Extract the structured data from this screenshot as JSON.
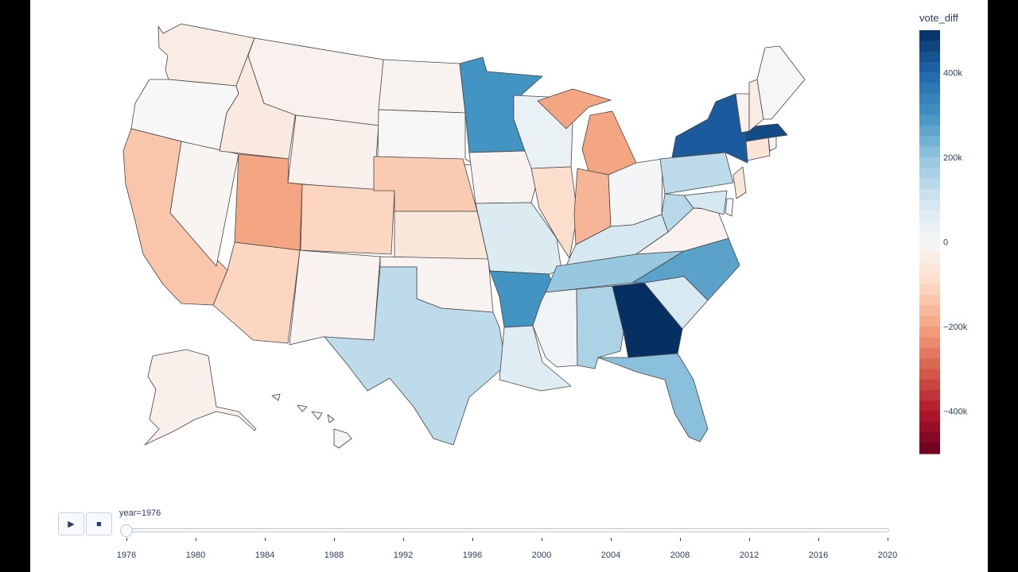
{
  "chart_data": {
    "type": "choropleth",
    "scope": "usa",
    "color_variable": "vote_diff",
    "colorscale": "RdBu",
    "color_range": [
      -500000,
      500000
    ],
    "colorbar": {
      "title": "vote_diff",
      "ticks": [
        {
          "value": 400000,
          "label": "400k"
        },
        {
          "value": 200000,
          "label": "200k"
        },
        {
          "value": 0,
          "label": "0"
        },
        {
          "value": -200000,
          "label": "−200k"
        },
        {
          "value": -400000,
          "label": "−400k"
        }
      ]
    },
    "animation_frame": "year",
    "current_frame_label": "year=1976",
    "current_year": 1976,
    "states": [
      {
        "state": "WA",
        "value": -40000
      },
      {
        "state": "OR",
        "value": 0
      },
      {
        "state": "CA",
        "value": -140000
      },
      {
        "state": "NV",
        "value": -10000
      },
      {
        "state": "ID",
        "value": -50000
      },
      {
        "state": "MT",
        "value": -20000
      },
      {
        "state": "WY",
        "value": -25000
      },
      {
        "state": "UT",
        "value": -200000
      },
      {
        "state": "AZ",
        "value": -110000
      },
      {
        "state": "CO",
        "value": -110000
      },
      {
        "state": "NM",
        "value": -15000
      },
      {
        "state": "ND",
        "value": -15000
      },
      {
        "state": "SD",
        "value": -5000
      },
      {
        "state": "NE",
        "value": -130000
      },
      {
        "state": "KS",
        "value": -60000
      },
      {
        "state": "OK",
        "value": -15000
      },
      {
        "state": "TX",
        "value": 130000
      },
      {
        "state": "MN",
        "value": 300000
      },
      {
        "state": "IA",
        "value": -15000
      },
      {
        "state": "MO",
        "value": 70000
      },
      {
        "state": "AR",
        "value": 300000
      },
      {
        "state": "LA",
        "value": 60000
      },
      {
        "state": "WI",
        "value": 35000
      },
      {
        "state": "IL",
        "value": -90000
      },
      {
        "state": "MI",
        "value": -200000
      },
      {
        "state": "IN",
        "value": -170000
      },
      {
        "state": "OH",
        "value": 10000
      },
      {
        "state": "KY",
        "value": 85000
      },
      {
        "state": "TN",
        "value": 190000
      },
      {
        "state": "MS",
        "value": 15000
      },
      {
        "state": "AL",
        "value": 160000
      },
      {
        "state": "GA",
        "value": 500000
      },
      {
        "state": "FL",
        "value": 210000
      },
      {
        "state": "SC",
        "value": 80000
      },
      {
        "state": "NC",
        "value": 270000
      },
      {
        "state": "VA",
        "value": -20000
      },
      {
        "state": "WV",
        "value": 140000
      },
      {
        "state": "PA",
        "value": 130000
      },
      {
        "state": "NY",
        "value": 420000
      },
      {
        "state": "NJ",
        "value": -60000
      },
      {
        "state": "DE",
        "value": 10000
      },
      {
        "state": "MD",
        "value": 90000
      },
      {
        "state": "CT",
        "value": -70000
      },
      {
        "state": "RI",
        "value": 20000
      },
      {
        "state": "MA",
        "value": 450000
      },
      {
        "state": "VT",
        "value": -20000
      },
      {
        "state": "NH",
        "value": -40000
      },
      {
        "state": "ME",
        "value": -3000
      },
      {
        "state": "AK",
        "value": -25000
      },
      {
        "state": "HI",
        "value": 3000
      }
    ]
  },
  "controls": {
    "play_icon": "play-icon",
    "stop_icon": "stop-icon",
    "play_glyph": "▶",
    "stop_glyph": "■"
  },
  "slider": {
    "years": [
      1976,
      1980,
      1984,
      1988,
      1992,
      1996,
      2000,
      2004,
      2008,
      2012,
      2016,
      2020
    ]
  }
}
